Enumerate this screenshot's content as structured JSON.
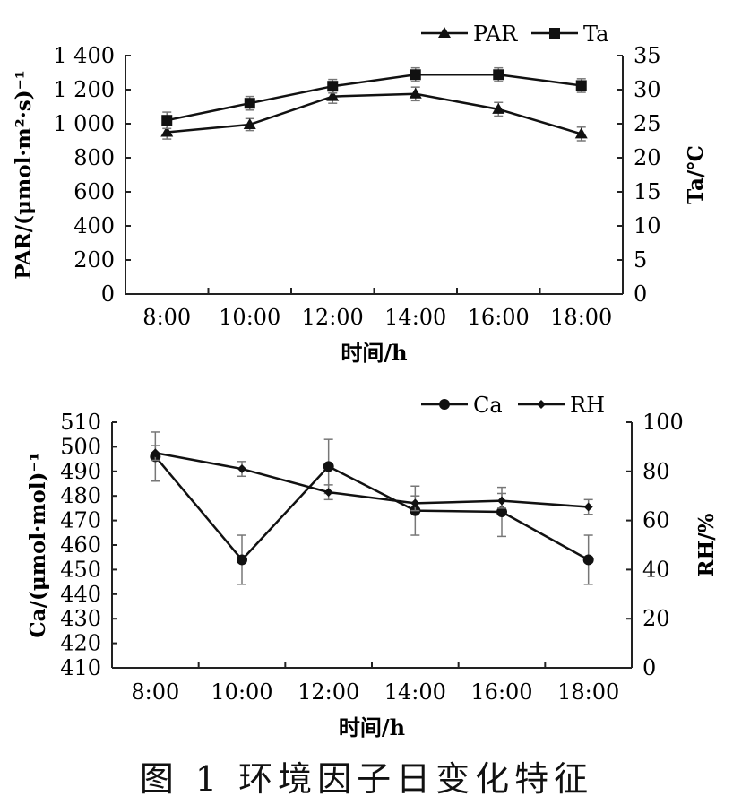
{
  "figure_caption": "图 1   环境因子日变化特征",
  "chart_data": [
    {
      "type": "line",
      "categories": [
        "8:00",
        "10:00",
        "12:00",
        "14:00",
        "16:00",
        "18:00"
      ],
      "xlabel": "时间/h",
      "ylabel_left": "PAR/(μmol·m²·s)⁻¹",
      "ylabel_right": "Ta/℃",
      "y_left_range": [
        0,
        1400
      ],
      "y_left_ticks": [
        "0",
        "200",
        "400",
        "600",
        "800",
        "1 000",
        "1 200",
        "1 400"
      ],
      "y_right_range": [
        0,
        35
      ],
      "y_right_ticks": [
        "0",
        "5",
        "10",
        "15",
        "20",
        "25",
        "30",
        "35"
      ],
      "grid": false,
      "legend_position": "top-right",
      "series": [
        {
          "name": "PAR",
          "axis": "left",
          "marker": "triangle",
          "values": [
            950,
            995,
            1160,
            1175,
            1085,
            940
          ],
          "errors": [
            40,
            35,
            40,
            40,
            40,
            40
          ]
        },
        {
          "name": "Ta",
          "axis": "right",
          "marker": "square",
          "values": [
            25.5,
            28,
            30.5,
            32.2,
            32.2,
            30.6
          ],
          "errors": [
            1.2,
            1.0,
            1.0,
            1.0,
            1.0,
            1.0
          ]
        }
      ]
    },
    {
      "type": "line",
      "categories": [
        "8:00",
        "10:00",
        "12:00",
        "14:00",
        "16:00",
        "18:00"
      ],
      "xlabel": "时间/h",
      "ylabel_left": "Ca/(μmol·mol)⁻¹",
      "ylabel_right": "RH/%",
      "y_left_range": [
        410,
        510
      ],
      "y_left_ticks": [
        "410",
        "420",
        "430",
        "440",
        "450",
        "460",
        "470",
        "480",
        "490",
        "500",
        "510"
      ],
      "y_right_range": [
        0,
        100
      ],
      "y_right_ticks": [
        "0",
        "20",
        "40",
        "60",
        "80",
        "100"
      ],
      "grid": false,
      "legend_position": "top-right",
      "series": [
        {
          "name": "Ca",
          "axis": "left",
          "marker": "circle",
          "values": [
            496,
            454,
            492,
            474,
            473.5,
            454
          ],
          "errors": [
            10,
            10,
            11,
            10,
            10,
            10
          ]
        },
        {
          "name": "RH",
          "axis": "right",
          "marker": "diamond",
          "values": [
            87.5,
            81,
            71.5,
            67,
            68,
            65.5
          ],
          "errors": [
            3,
            3,
            3,
            3,
            3,
            3
          ]
        }
      ]
    }
  ]
}
